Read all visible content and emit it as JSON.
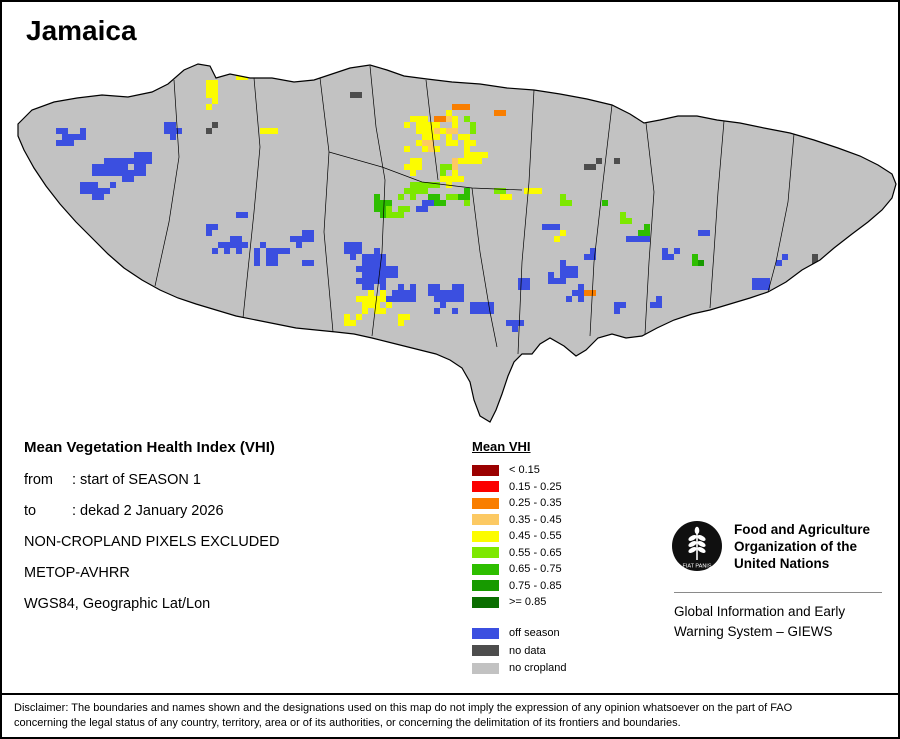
{
  "title": "Jamaica",
  "info": {
    "heading": "Mean Vegetation Health Index (VHI)",
    "from_label": "from",
    "from_value": ": start of SEASON 1",
    "to_label": "to",
    "to_value": ": dekad 2 January 2026",
    "exclusion": "NON-CROPLAND PIXELS EXCLUDED",
    "sensor": "METOP-AVHRR",
    "projection": "WGS84, Geographic Lat/Lon"
  },
  "legend": {
    "title": "Mean VHI",
    "classes": [
      {
        "label": "< 0.15",
        "color": "#9b0000"
      },
      {
        "label": "0.15 - 0.25",
        "color": "#fb0000"
      },
      {
        "label": "0.25 - 0.35",
        "color": "#f97e00"
      },
      {
        "label": "0.35 - 0.45",
        "color": "#fcc963"
      },
      {
        "label": "0.45 - 0.55",
        "color": "#fcfc00"
      },
      {
        "label": "0.55 - 0.65",
        "color": "#7de800"
      },
      {
        "label": "0.65 - 0.75",
        "color": "#2ebe00"
      },
      {
        "label": "0.75 - 0.85",
        "color": "#179a00"
      },
      {
        "label": ">= 0.85",
        "color": "#0a6e00"
      }
    ],
    "extras": [
      {
        "label": "off season",
        "color": "#3b4fe0"
      },
      {
        "label": "no data",
        "color": "#4d4d4d"
      },
      {
        "label": "no cropland",
        "color": "#c2c2c2"
      }
    ]
  },
  "org": {
    "fao_name_lines": [
      "Food and Agriculture",
      "Organization of the",
      "United Nations"
    ],
    "giews_lines": [
      "Global Information and Early",
      "Warning System – GIEWS"
    ],
    "logo_motto": "FIAT PANIS"
  },
  "disclaimer": {
    "line1": "Disclaimer: The boundaries and names shown and the designations used on this map do not imply the expression of any opinion whatsoever on the part of FAO",
    "line2": "concerning the legal status of any country, territory, area or of its authorities, or concerning the delimitation of its frontiers and boundaries."
  }
}
